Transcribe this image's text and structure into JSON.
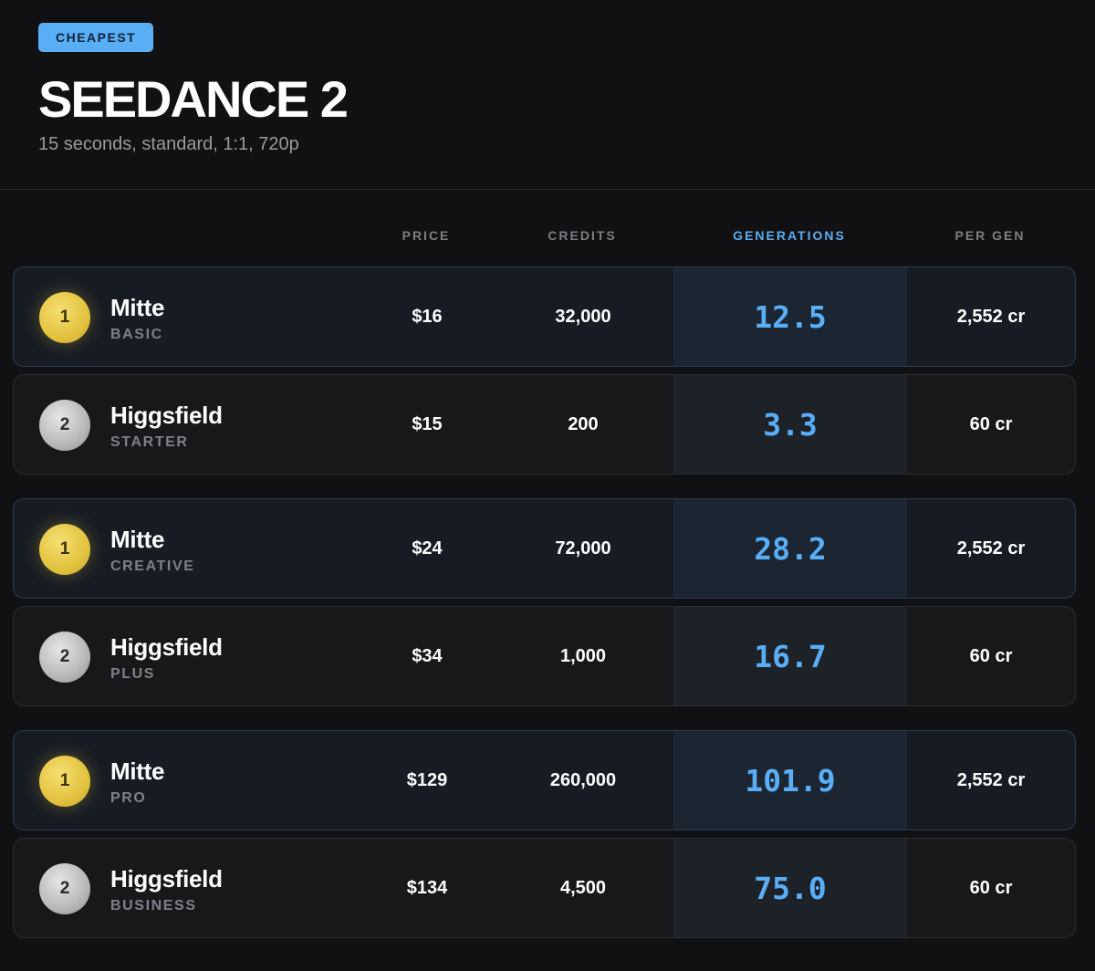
{
  "header": {
    "badge": "CHEAPEST",
    "title": "SEEDANCE 2",
    "subtitle": "15 seconds, standard, 1:1, 720p"
  },
  "columns": {
    "price": "PRICE",
    "credits": "CREDITS",
    "generations": "GENERATIONS",
    "per_gen": "PER GEN"
  },
  "colors": {
    "accent": "#5aaef5",
    "gold": "#e3c33f",
    "silver": "#b8b8b8",
    "background": "#111113"
  },
  "groups": [
    {
      "rows": [
        {
          "rank": "1",
          "medal": "gold",
          "name": "Mitte",
          "plan": "BASIC",
          "price": "$16",
          "credits": "32,000",
          "generations": "12.5",
          "per_gen": "2,552 cr"
        },
        {
          "rank": "2",
          "medal": "silver",
          "name": "Higgsfield",
          "plan": "STARTER",
          "price": "$15",
          "credits": "200",
          "generations": "3.3",
          "per_gen": "60 cr"
        }
      ]
    },
    {
      "rows": [
        {
          "rank": "1",
          "medal": "gold",
          "name": "Mitte",
          "plan": "CREATIVE",
          "price": "$24",
          "credits": "72,000",
          "generations": "28.2",
          "per_gen": "2,552 cr"
        },
        {
          "rank": "2",
          "medal": "silver",
          "name": "Higgsfield",
          "plan": "PLUS",
          "price": "$34",
          "credits": "1,000",
          "generations": "16.7",
          "per_gen": "60 cr"
        }
      ]
    },
    {
      "rows": [
        {
          "rank": "1",
          "medal": "gold",
          "name": "Mitte",
          "plan": "PRO",
          "price": "$129",
          "credits": "260,000",
          "generations": "101.9",
          "per_gen": "2,552 cr"
        },
        {
          "rank": "2",
          "medal": "silver",
          "name": "Higgsfield",
          "plan": "BUSINESS",
          "price": "$134",
          "credits": "4,500",
          "generations": "75.0",
          "per_gen": "60 cr"
        }
      ]
    }
  ]
}
